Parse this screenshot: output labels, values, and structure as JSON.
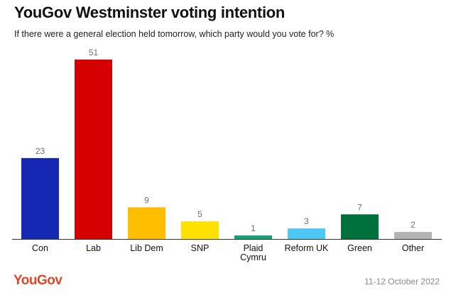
{
  "title": "YouGov Westminster voting intention",
  "subtitle": "If there were a general election held tomorrow, which party would you vote for? %",
  "logo_text": "YouGov",
  "date_text": "11-12 October 2022",
  "chart_data": {
    "type": "bar",
    "title": "YouGov Westminster voting intention",
    "subtitle": "If there were a general election held tomorrow, which party would you vote for? %",
    "categories": [
      "Con",
      "Lab",
      "Lib Dem",
      "SNP",
      "Plaid Cymru",
      "Reform UK",
      "Green",
      "Other"
    ],
    "category_lines": [
      [
        "Con"
      ],
      [
        "Lab"
      ],
      [
        "Lib Dem"
      ],
      [
        "SNP"
      ],
      [
        "Plaid",
        "Cymru"
      ],
      [
        "Reform UK"
      ],
      [
        "Green"
      ],
      [
        "Other"
      ]
    ],
    "values": [
      23,
      51,
      9,
      5,
      1,
      3,
      7,
      2
    ],
    "colors": [
      "#1428b4",
      "#d50000",
      "#ffbe00",
      "#ffe100",
      "#12a27a",
      "#4dc8f5",
      "#00703c",
      "#b4b4b4"
    ],
    "ylim": [
      0,
      51
    ],
    "grid": false,
    "legend": "none"
  }
}
